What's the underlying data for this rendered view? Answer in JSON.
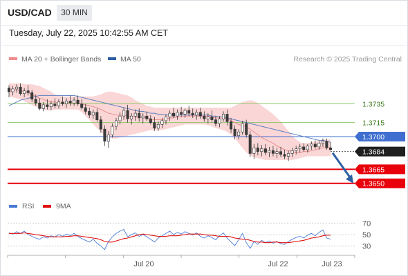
{
  "header": {
    "symbol": "USD/CAD",
    "timeframe": "30 MIN",
    "datetime": "Tuesday, July 22, 2025 10:42:55 AM CET"
  },
  "legend": {
    "ma20_label": "MA 20 + Bollinger Bands",
    "ma20_color": "#f08c8c",
    "ma50_label": "MA 50",
    "ma50_color": "#2d5fa3"
  },
  "attribution": "Research © 2025 Trading Central",
  "colors": {
    "up_candle": "#ffffff",
    "down_candle": "#3a3a3a",
    "resistance": "#8ec76a",
    "support": "#e8000b",
    "current_level": "#3e6fd0",
    "forecast_arrow": "#2d5fa3",
    "bollinger_fill": "#f9cfcf",
    "rsi_line": "#4a7bd6",
    "rsi_ma_line": "#e01010"
  },
  "chart_data": [
    {
      "type": "candlestick",
      "x_labels": [
        "Jul 20",
        "Jul 22",
        "Jul 23"
      ],
      "ylim": [
        1.3638,
        1.3776
      ],
      "ohlc": [
        [
          1.3752,
          1.3755,
          1.3742,
          1.3748
        ],
        [
          1.3748,
          1.3754,
          1.3744,
          1.3751
        ],
        [
          1.3751,
          1.3756,
          1.3747,
          1.3753
        ],
        [
          1.3753,
          1.3757,
          1.3744,
          1.3746
        ],
        [
          1.3746,
          1.3752,
          1.3742,
          1.3749
        ],
        [
          1.3749,
          1.3755,
          1.3744,
          1.3747
        ],
        [
          1.3747,
          1.375,
          1.3737,
          1.374
        ],
        [
          1.374,
          1.3745,
          1.3733,
          1.3736
        ],
        [
          1.3736,
          1.3741,
          1.3728,
          1.373
        ],
        [
          1.373,
          1.3737,
          1.3727,
          1.3734
        ],
        [
          1.3734,
          1.374,
          1.3729,
          1.3732
        ],
        [
          1.3732,
          1.3738,
          1.3728,
          1.3735
        ],
        [
          1.3735,
          1.3741,
          1.373,
          1.3733
        ],
        [
          1.3733,
          1.374,
          1.373,
          1.3737
        ],
        [
          1.3737,
          1.3743,
          1.3733,
          1.3735
        ],
        [
          1.3735,
          1.3741,
          1.3731,
          1.3738
        ],
        [
          1.3738,
          1.3744,
          1.3733,
          1.3736
        ],
        [
          1.3736,
          1.3742,
          1.3733,
          1.3739
        ],
        [
          1.3739,
          1.3744,
          1.3733,
          1.3735
        ],
        [
          1.3735,
          1.374,
          1.3729,
          1.3731
        ],
        [
          1.3731,
          1.3735,
          1.3724,
          1.3727
        ],
        [
          1.3727,
          1.3731,
          1.372,
          1.3723
        ],
        [
          1.3723,
          1.3729,
          1.3719,
          1.3726
        ],
        [
          1.3726,
          1.373,
          1.3716,
          1.3718
        ],
        [
          1.3718,
          1.3722,
          1.3704,
          1.3708
        ],
        [
          1.3708,
          1.3712,
          1.369,
          1.3695
        ],
        [
          1.3695,
          1.3706,
          1.3688,
          1.3702
        ],
        [
          1.3702,
          1.3714,
          1.3699,
          1.3711
        ],
        [
          1.3711,
          1.372,
          1.3707,
          1.3717
        ],
        [
          1.3717,
          1.3726,
          1.3713,
          1.3722
        ],
        [
          1.3722,
          1.3731,
          1.3718,
          1.3728
        ],
        [
          1.3728,
          1.3734,
          1.3715,
          1.3719
        ],
        [
          1.3719,
          1.3725,
          1.3713,
          1.3722
        ],
        [
          1.3722,
          1.3729,
          1.3717,
          1.3725
        ],
        [
          1.3725,
          1.373,
          1.3716,
          1.372
        ],
        [
          1.372,
          1.3725,
          1.3714,
          1.3722
        ],
        [
          1.3722,
          1.3727,
          1.3717,
          1.3719
        ],
        [
          1.3719,
          1.3723,
          1.3713,
          1.3715
        ],
        [
          1.3715,
          1.3721,
          1.3706,
          1.3709
        ],
        [
          1.3709,
          1.3716,
          1.3706,
          1.3713
        ],
        [
          1.3713,
          1.372,
          1.3709,
          1.3717
        ],
        [
          1.3717,
          1.3724,
          1.3713,
          1.3721
        ],
        [
          1.3721,
          1.3728,
          1.3717,
          1.3725
        ],
        [
          1.3725,
          1.3731,
          1.372,
          1.3722
        ],
        [
          1.3722,
          1.3729,
          1.3718,
          1.3726
        ],
        [
          1.3726,
          1.3732,
          1.3721,
          1.3724
        ],
        [
          1.3724,
          1.373,
          1.372,
          1.3728
        ],
        [
          1.3728,
          1.3733,
          1.3722,
          1.3725
        ],
        [
          1.3725,
          1.373,
          1.372,
          1.3723
        ],
        [
          1.3723,
          1.3729,
          1.3718,
          1.3726
        ],
        [
          1.3726,
          1.3731,
          1.3719,
          1.3722
        ],
        [
          1.3722,
          1.3727,
          1.3716,
          1.3719
        ],
        [
          1.3719,
          1.3725,
          1.3714,
          1.3721
        ],
        [
          1.3721,
          1.3728,
          1.3715,
          1.3718
        ],
        [
          1.3718,
          1.3722,
          1.3711,
          1.3714
        ],
        [
          1.3714,
          1.3722,
          1.371,
          1.3719
        ],
        [
          1.3719,
          1.3727,
          1.3716,
          1.3724
        ],
        [
          1.3724,
          1.3729,
          1.3712,
          1.3716
        ],
        [
          1.3716,
          1.372,
          1.3704,
          1.3708
        ],
        [
          1.3708,
          1.3712,
          1.3697,
          1.3701
        ],
        [
          1.3701,
          1.3708,
          1.3697,
          1.3705
        ],
        [
          1.3705,
          1.3717,
          1.3702,
          1.3714
        ],
        [
          1.3714,
          1.3718,
          1.3699,
          1.3702
        ],
        [
          1.3702,
          1.3706,
          1.3678,
          1.3682
        ],
        [
          1.3682,
          1.3692,
          1.3676,
          1.3688
        ],
        [
          1.3688,
          1.3693,
          1.368,
          1.3684
        ],
        [
          1.3684,
          1.3691,
          1.3679,
          1.3687
        ],
        [
          1.3687,
          1.3692,
          1.368,
          1.3683
        ],
        [
          1.3683,
          1.3689,
          1.3678,
          1.3685
        ],
        [
          1.3685,
          1.369,
          1.3679,
          1.3682
        ],
        [
          1.3682,
          1.3688,
          1.3677,
          1.3684
        ],
        [
          1.3684,
          1.3689,
          1.3678,
          1.3681
        ],
        [
          1.3681,
          1.3686,
          1.3676,
          1.3679
        ],
        [
          1.3679,
          1.3685,
          1.3674,
          1.3682
        ],
        [
          1.3682,
          1.3688,
          1.3678,
          1.3685
        ],
        [
          1.3685,
          1.369,
          1.3681,
          1.3687
        ],
        [
          1.3687,
          1.3692,
          1.3683,
          1.3689
        ],
        [
          1.3689,
          1.3693,
          1.3684,
          1.3686
        ],
        [
          1.3686,
          1.3692,
          1.3683,
          1.369
        ],
        [
          1.369,
          1.3695,
          1.3686,
          1.3692
        ],
        [
          1.3692,
          1.3696,
          1.3687,
          1.3689
        ],
        [
          1.3689,
          1.3695,
          1.3686,
          1.3693
        ],
        [
          1.3693,
          1.3698,
          1.3689,
          1.3695
        ],
        [
          1.3695,
          1.3698,
          1.3686,
          1.3688
        ],
        [
          1.3688,
          1.3694,
          1.3685,
          1.3686
        ]
      ],
      "ma20": [
        1.375,
        1.375,
        1.375,
        1.3749,
        1.3748,
        1.3747,
        1.3745,
        1.3743,
        1.3741,
        1.374,
        1.3738,
        1.3737,
        1.3737,
        1.3736,
        1.3736,
        1.3736,
        1.3736,
        1.3736,
        1.3736,
        1.3735,
        1.3734,
        1.3733,
        1.3732,
        1.3731,
        1.3729,
        1.3727,
        1.3725,
        1.3724,
        1.3723,
        1.3723,
        1.3723,
        1.3722,
        1.3721,
        1.3721,
        1.3721,
        1.372,
        1.372,
        1.3719,
        1.3718,
        1.3718,
        1.3718,
        1.3719,
        1.372,
        1.372,
        1.3721,
        1.3721,
        1.3722,
        1.3722,
        1.3722,
        1.3722,
        1.3722,
        1.3722,
        1.3722,
        1.3721,
        1.372,
        1.372,
        1.372,
        1.3719,
        1.3717,
        1.3715,
        1.3713,
        1.3712,
        1.371,
        1.3708,
        1.3705,
        1.3702,
        1.3699,
        1.3697,
        1.3695,
        1.3693,
        1.369,
        1.3688,
        1.3686,
        1.3685,
        1.3684,
        1.3683,
        1.3683,
        1.3684,
        1.3684,
        1.3685,
        1.3686,
        1.3687,
        1.3688,
        1.3688,
        1.3688
      ],
      "bollinger_upper": [
        1.3757,
        1.3757,
        1.3757,
        1.3757,
        1.3756,
        1.3756,
        1.3756,
        1.3755,
        1.3754,
        1.3752,
        1.375,
        1.3748,
        1.3745,
        1.3744,
        1.3743,
        1.3743,
        1.3743,
        1.3743,
        1.3743,
        1.3743,
        1.3743,
        1.3743,
        1.3743,
        1.3744,
        1.3745,
        1.3747,
        1.3748,
        1.3748,
        1.3747,
        1.3746,
        1.3745,
        1.3744,
        1.3742,
        1.3739,
        1.3737,
        1.3735,
        1.3733,
        1.3732,
        1.3731,
        1.3731,
        1.3731,
        1.3731,
        1.3731,
        1.3731,
        1.3731,
        1.3731,
        1.3731,
        1.3731,
        1.3731,
        1.3731,
        1.3731,
        1.3731,
        1.3731,
        1.3731,
        1.3731,
        1.3731,
        1.3731,
        1.3731,
        1.3731,
        1.3733,
        1.3735,
        1.3737,
        1.3738,
        1.3739,
        1.3738,
        1.3736,
        1.3733,
        1.373,
        1.3727,
        1.3724,
        1.372,
        1.3716,
        1.3711,
        1.3706,
        1.3701,
        1.3697,
        1.3694,
        1.3693,
        1.3693,
        1.3694,
        1.3695,
        1.3696,
        1.3697,
        1.3697,
        1.3697
      ],
      "bollinger_lower": [
        1.3743,
        1.3742,
        1.3741,
        1.374,
        1.3738,
        1.3736,
        1.3734,
        1.3732,
        1.373,
        1.3729,
        1.3728,
        1.3728,
        1.3729,
        1.3729,
        1.3729,
        1.3729,
        1.3729,
        1.3729,
        1.3729,
        1.3726,
        1.3722,
        1.3718,
        1.3713,
        1.3709,
        1.3705,
        1.3701,
        1.3699,
        1.3698,
        1.3698,
        1.3699,
        1.37,
        1.3701,
        1.3702,
        1.3703,
        1.3704,
        1.3705,
        1.3706,
        1.3707,
        1.3707,
        1.3707,
        1.3707,
        1.3708,
        1.3709,
        1.371,
        1.3711,
        1.3712,
        1.3713,
        1.3713,
        1.3713,
        1.3713,
        1.3713,
        1.3713,
        1.3712,
        1.3711,
        1.3709,
        1.3708,
        1.3707,
        1.3705,
        1.3702,
        1.3698,
        1.3693,
        1.3688,
        1.3683,
        1.368,
        1.3678,
        1.3677,
        1.3676,
        1.3675,
        1.3675,
        1.3675,
        1.3675,
        1.3675,
        1.3675,
        1.3675,
        1.3675,
        1.3676,
        1.3677,
        1.3678,
        1.3679,
        1.3679,
        1.3679,
        1.3679,
        1.3679,
        1.3679,
        1.3679
      ],
      "ma50": [
        1.3733,
        1.3735,
        1.3737,
        1.3739,
        1.374,
        1.3741,
        1.3742,
        1.3743,
        1.3744,
        1.3744,
        1.3744,
        1.3744,
        1.3744,
        1.3744,
        1.3744,
        1.3744,
        1.3744,
        1.3744,
        1.3743,
        1.3742,
        1.3741,
        1.374,
        1.3739,
        1.3738,
        1.3737,
        1.3736,
        1.3735,
        1.3734,
        1.3733,
        1.3732,
        1.3731,
        1.373,
        1.3729,
        1.3728,
        1.3727,
        1.3727,
        1.3726,
        1.3725,
        1.3725,
        1.3724,
        1.3724,
        1.3723,
        1.3723,
        1.3723,
        1.3723,
        1.3723,
        1.3723,
        1.3723,
        1.3723,
        1.3723,
        1.3723,
        1.3723,
        1.3723,
        1.3722,
        1.3722,
        1.3721,
        1.3721,
        1.372,
        1.3719,
        1.3718,
        1.3717,
        1.3716,
        1.3715,
        1.3714,
        1.3713,
        1.3712,
        1.3711,
        1.371,
        1.3709,
        1.3708,
        1.3707,
        1.3706,
        1.3705,
        1.3704,
        1.3703,
        1.3702,
        1.3701,
        1.37,
        1.3699,
        1.3698,
        1.3697,
        1.3696,
        1.3696,
        1.3695,
        1.3694
      ],
      "levels": [
        {
          "value": 1.3735,
          "label": "1.3735",
          "kind": "resistance"
        },
        {
          "value": 1.3715,
          "label": "1.3715",
          "kind": "resistance"
        },
        {
          "value": 1.37,
          "label": "1.3700",
          "kind": "pivot"
        },
        {
          "value": 1.3684,
          "label": "1.3684",
          "kind": "current"
        },
        {
          "value": 1.3665,
          "label": "1.3665",
          "kind": "support"
        },
        {
          "value": 1.365,
          "label": "1.3650",
          "kind": "support"
        }
      ],
      "forecast_arrow": {
        "from": 1.3684,
        "to": 1.365
      }
    },
    {
      "type": "line",
      "legend": [
        "RSI",
        "9MA"
      ],
      "y_ticks": [
        70,
        50,
        30
      ],
      "ylim": [
        20,
        80
      ],
      "rsi": [
        53,
        51,
        55,
        52,
        56,
        50,
        47,
        44,
        42,
        46,
        44,
        48,
        46,
        50,
        47,
        51,
        48,
        52,
        47,
        43,
        40,
        37,
        42,
        35,
        30,
        24,
        38,
        46,
        52,
        56,
        59,
        46,
        50,
        53,
        47,
        50,
        46,
        42,
        37,
        44,
        48,
        52,
        56,
        50,
        54,
        51,
        55,
        52,
        49,
        53,
        47,
        44,
        48,
        45,
        41,
        48,
        53,
        44,
        37,
        31,
        41,
        52,
        36,
        26,
        38,
        33,
        40,
        36,
        39,
        35,
        38,
        34,
        33,
        38,
        42,
        45,
        47,
        44,
        49,
        52,
        48,
        54,
        58,
        44,
        42
      ],
      "rsi_ma": [
        52,
        52,
        52,
        52,
        53,
        52,
        51,
        50,
        49,
        48,
        47,
        46,
        46,
        46,
        46,
        47,
        47,
        48,
        48,
        47,
        46,
        45,
        44,
        43,
        41,
        38,
        37,
        37,
        39,
        41,
        43,
        44,
        46,
        48,
        50,
        51,
        50,
        49,
        48,
        47,
        47,
        47,
        48,
        48,
        48,
        49,
        50,
        51,
        51,
        51,
        51,
        50,
        49,
        49,
        48,
        47,
        47,
        47,
        46,
        44,
        43,
        42,
        42,
        40,
        38,
        37,
        37,
        36,
        36,
        37,
        37,
        36,
        36,
        36,
        37,
        38,
        39,
        40,
        42,
        44,
        45,
        46,
        48,
        49,
        49
      ],
      "x_labels": [
        "Jul 20",
        "Jul 22",
        "Jul 23"
      ]
    }
  ],
  "rsi_legend": {
    "rsi_label": "RSI",
    "ma_label": "9MA"
  }
}
